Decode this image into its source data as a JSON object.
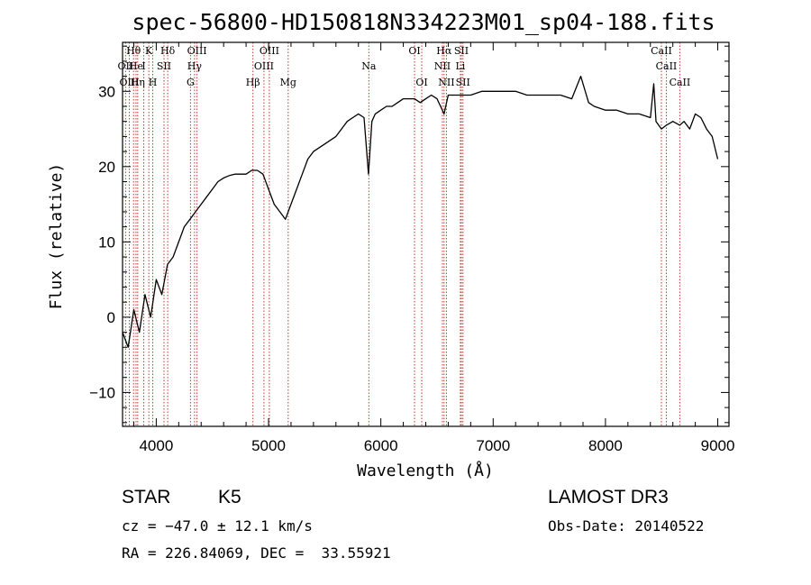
{
  "chart_data": {
    "type": "line",
    "title": "spec-56800-HD150818N334223M01_sp04-188.fits",
    "xlabel": "Wavelength (Å)",
    "ylabel": "Flux (relative)",
    "xlim": [
      3700,
      9100
    ],
    "ylim": [
      -14.5,
      36.5
    ],
    "xticks": [
      4000,
      5000,
      6000,
      7000,
      8000,
      9000
    ],
    "yticks": [
      -10,
      0,
      10,
      20,
      30
    ],
    "series": [
      {
        "name": "spectrum",
        "x": [
          3700,
          3750,
          3800,
          3850,
          3900,
          3950,
          4000,
          4050,
          4100,
          4150,
          4200,
          4250,
          4300,
          4350,
          4400,
          4450,
          4500,
          4550,
          4600,
          4650,
          4700,
          4750,
          4800,
          4850,
          4900,
          4950,
          5000,
          5050,
          5100,
          5150,
          5200,
          5250,
          5300,
          5350,
          5400,
          5450,
          5500,
          5550,
          5600,
          5650,
          5700,
          5750,
          5800,
          5850,
          5890,
          5920,
          5950,
          6000,
          6050,
          6100,
          6150,
          6200,
          6250,
          6300,
          6350,
          6400,
          6450,
          6500,
          6563,
          6600,
          6650,
          6700,
          6750,
          6800,
          6900,
          7000,
          7100,
          7200,
          7300,
          7400,
          7500,
          7600,
          7700,
          7780,
          7800,
          7850,
          7900,
          8000,
          8100,
          8200,
          8300,
          8400,
          8430,
          8450,
          8498,
          8542,
          8600,
          8662,
          8700,
          8750,
          8800,
          8850,
          8900,
          8950,
          9000
        ],
        "y": [
          -2,
          -4,
          1,
          -2,
          3,
          0,
          5,
          3,
          7,
          8,
          10,
          12,
          13,
          14,
          15,
          16,
          17,
          18,
          18.5,
          18.8,
          19,
          19,
          19,
          19.5,
          19.5,
          19,
          17,
          15,
          14,
          13,
          15,
          17,
          19,
          21,
          22,
          22.5,
          23,
          23.5,
          24,
          25,
          26,
          26.5,
          27,
          26.5,
          19,
          26,
          27,
          27.5,
          28,
          28,
          28.5,
          29,
          29,
          29,
          28.5,
          29,
          29.5,
          29,
          27,
          29.5,
          29.5,
          29.5,
          29.5,
          29.5,
          30,
          30,
          30,
          30,
          29.5,
          29.5,
          29.5,
          29.5,
          29,
          32,
          31,
          28.5,
          28,
          27.5,
          27.5,
          27,
          27,
          26.5,
          31,
          26,
          25,
          25.5,
          26,
          25.5,
          26,
          25,
          27,
          26.5,
          25,
          24,
          21
        ]
      }
    ],
    "spectral_lines": [
      {
        "label": "Hθ",
        "wave": 3798,
        "row": 0
      },
      {
        "label": "K",
        "wave": 3934,
        "row": 0
      },
      {
        "label": "Hδ",
        "wave": 4102,
        "row": 0
      },
      {
        "label": "OIII",
        "wave": 4363,
        "row": 0
      },
      {
        "label": "OIII",
        "wave": 5007,
        "row": 0
      },
      {
        "label": "OI",
        "wave": 6300,
        "row": 0
      },
      {
        "label": "Hα",
        "wave": 6563,
        "row": 0
      },
      {
        "label": "SII",
        "wave": 6717,
        "row": 0
      },
      {
        "label": "CaII",
        "wave": 8498,
        "row": 0
      },
      {
        "label": "OII",
        "wave": 3727,
        "row": 1
      },
      {
        "label": "He",
        "wave": 3820,
        "row": 1
      },
      {
        "label": "I",
        "wave": 3889,
        "row": 1
      },
      {
        "label": "SII",
        "wave": 4069,
        "row": 1
      },
      {
        "label": "Hγ",
        "wave": 4341,
        "row": 1
      },
      {
        "label": "OIII",
        "wave": 4959,
        "row": 1
      },
      {
        "label": "Na",
        "wave": 5893,
        "row": 1
      },
      {
        "label": "NII",
        "wave": 6548,
        "row": 1
      },
      {
        "label": "Li",
        "wave": 6708,
        "row": 1
      },
      {
        "label": "CaII",
        "wave": 8542,
        "row": 1
      },
      {
        "label": "OIII",
        "wave": 3760,
        "row": 2
      },
      {
        "label": "Hη",
        "wave": 3835,
        "row": 2
      },
      {
        "label": "H",
        "wave": 3969,
        "row": 2
      },
      {
        "label": "G",
        "wave": 4305,
        "row": 2
      },
      {
        "label": "Hβ",
        "wave": 4861,
        "row": 2
      },
      {
        "label": "Mg",
        "wave": 5175,
        "row": 2
      },
      {
        "label": "OI",
        "wave": 6364,
        "row": 2
      },
      {
        "label": "NII",
        "wave": 6584,
        "row": 2
      },
      {
        "label": "SII",
        "wave": 6731,
        "row": 2
      },
      {
        "label": "CaII",
        "wave": 8662,
        "row": 2
      }
    ],
    "marker_lines": [
      3727,
      3760,
      3798,
      3820,
      3835,
      3889,
      3934,
      3969,
      4069,
      4102,
      4305,
      4341,
      4363,
      4861,
      4959,
      5007,
      5175,
      5893,
      6300,
      6364,
      6548,
      6563,
      6584,
      6708,
      6717,
      6731,
      8498,
      8542,
      8662
    ]
  },
  "info": {
    "object_class": "STAR",
    "subclass": "K5",
    "cz": "cz = −47.0 ± 12.1 km/s",
    "coords": "RA = 226.84069, DEC =  33.55921",
    "survey": "LAMOST DR3",
    "obs_date": "Obs-Date: 20140522"
  }
}
